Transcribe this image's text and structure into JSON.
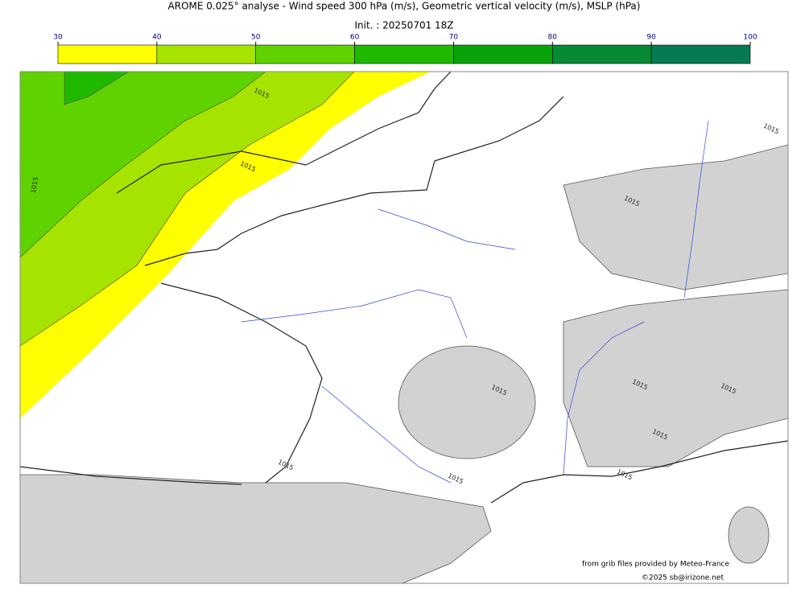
{
  "header": {
    "title": "AROME 0.025° analyse - Wind speed 300 hPa (m/s), Geometric vertical velocity (m/s), MSLP (hPa)",
    "init": "Init. : 20250701 18Z"
  },
  "colorbar": {
    "ticks": [
      30,
      40,
      50,
      60,
      70,
      80,
      90,
      100
    ],
    "colors": [
      "#ffff00",
      "#a6e400",
      "#5ed300",
      "#1fb900",
      "#08a20a",
      "#078a34",
      "#067a50"
    ]
  },
  "contour_labels": [
    "1015",
    "1015",
    "1015",
    "1015",
    "1015",
    "1015",
    "1015",
    "1015",
    "1015",
    "1015",
    "1015",
    "1015"
  ],
  "credits": [
    "from grib files provided by Meteo-France",
    "©2025 sb@irizone.net"
  ]
}
